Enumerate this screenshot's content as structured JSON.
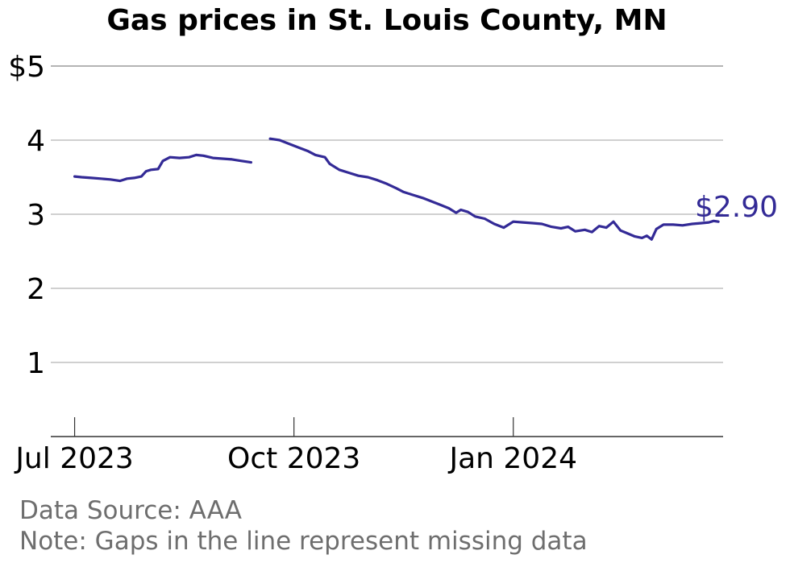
{
  "chart_data": {
    "type": "line",
    "title": "Gas prices in St. Louis County, MN",
    "xlabel": "",
    "ylabel": "",
    "x_ticks": [
      {
        "label": "Jul 2023",
        "date": "2023-07-01"
      },
      {
        "label": "Oct 2023",
        "date": "2023-10-01"
      },
      {
        "label": "Jan 2024",
        "date": "2024-01-01"
      }
    ],
    "y_ticks": [
      {
        "label": "1",
        "value": 1
      },
      {
        "label": "2",
        "value": 2
      },
      {
        "label": "3",
        "value": 3
      },
      {
        "label": "4",
        "value": 4
      },
      {
        "label": "$5",
        "value": 5
      }
    ],
    "xlim": [
      "2023-06-21",
      "2024-03-29"
    ],
    "ylim": [
      0,
      5
    ],
    "grid": true,
    "line_color": "#332a96",
    "end_label": "$2.90",
    "series": [
      {
        "segments": [
          [
            [
              "2023-07-01",
              3.51
            ],
            [
              "2023-07-04",
              3.5
            ],
            [
              "2023-07-08",
              3.49
            ],
            [
              "2023-07-12",
              3.48
            ],
            [
              "2023-07-16",
              3.47
            ],
            [
              "2023-07-20",
              3.45
            ],
            [
              "2023-07-23",
              3.48
            ],
            [
              "2023-07-26",
              3.49
            ],
            [
              "2023-07-29",
              3.51
            ],
            [
              "2023-07-31",
              3.58
            ],
            [
              "2023-08-02",
              3.6
            ],
            [
              "2023-08-05",
              3.61
            ],
            [
              "2023-08-07",
              3.72
            ],
            [
              "2023-08-10",
              3.77
            ],
            [
              "2023-08-14",
              3.76
            ],
            [
              "2023-08-18",
              3.77
            ],
            [
              "2023-08-21",
              3.8
            ],
            [
              "2023-08-24",
              3.79
            ],
            [
              "2023-08-28",
              3.76
            ],
            [
              "2023-09-01",
              3.75
            ],
            [
              "2023-09-05",
              3.74
            ],
            [
              "2023-09-09",
              3.72
            ],
            [
              "2023-09-13",
              3.7
            ]
          ],
          [
            [
              "2023-09-21",
              4.02
            ],
            [
              "2023-09-25",
              4.0
            ],
            [
              "2023-09-29",
              3.95
            ],
            [
              "2023-10-03",
              3.9
            ],
            [
              "2023-10-07",
              3.85
            ],
            [
              "2023-10-10",
              3.8
            ],
            [
              "2023-10-14",
              3.77
            ],
            [
              "2023-10-16",
              3.68
            ],
            [
              "2023-10-20",
              3.6
            ],
            [
              "2023-10-24",
              3.56
            ],
            [
              "2023-10-28",
              3.52
            ],
            [
              "2023-11-01",
              3.5
            ],
            [
              "2023-11-05",
              3.46
            ],
            [
              "2023-11-09",
              3.41
            ],
            [
              "2023-11-13",
              3.35
            ],
            [
              "2023-11-16",
              3.3
            ],
            [
              "2023-11-20",
              3.26
            ],
            [
              "2023-11-24",
              3.22
            ],
            [
              "2023-11-28",
              3.17
            ],
            [
              "2023-12-02",
              3.12
            ],
            [
              "2023-12-05",
              3.08
            ],
            [
              "2023-12-08",
              3.02
            ],
            [
              "2023-12-10",
              3.06
            ],
            [
              "2023-12-13",
              3.03
            ],
            [
              "2023-12-16",
              2.97
            ],
            [
              "2023-12-20",
              2.94
            ],
            [
              "2023-12-24",
              2.87
            ],
            [
              "2023-12-28",
              2.82
            ],
            [
              "2024-01-01",
              2.9
            ],
            [
              "2024-01-05",
              2.89
            ],
            [
              "2024-01-09",
              2.88
            ],
            [
              "2024-01-13",
              2.87
            ],
            [
              "2024-01-17",
              2.83
            ],
            [
              "2024-01-21",
              2.81
            ],
            [
              "2024-01-24",
              2.83
            ],
            [
              "2024-01-27",
              2.77
            ],
            [
              "2024-01-31",
              2.79
            ],
            [
              "2024-02-03",
              2.76
            ],
            [
              "2024-02-06",
              2.84
            ],
            [
              "2024-02-09",
              2.82
            ],
            [
              "2024-02-12",
              2.9
            ],
            [
              "2024-02-15",
              2.78
            ],
            [
              "2024-02-18",
              2.74
            ],
            [
              "2024-02-21",
              2.7
            ],
            [
              "2024-02-24",
              2.68
            ],
            [
              "2024-02-26",
              2.71
            ],
            [
              "2024-02-28",
              2.66
            ],
            [
              "2024-03-01",
              2.8
            ],
            [
              "2024-03-04",
              2.86
            ],
            [
              "2024-03-08",
              2.86
            ],
            [
              "2024-03-12",
              2.85
            ],
            [
              "2024-03-16",
              2.87
            ],
            [
              "2024-03-20",
              2.88
            ],
            [
              "2024-03-23",
              2.89
            ],
            [
              "2024-03-25",
              2.91
            ],
            [
              "2024-03-27",
              2.9
            ]
          ]
        ]
      }
    ]
  },
  "footer": {
    "source": "Data Source: AAA",
    "note": "Note: Gaps in the line represent missing data"
  }
}
